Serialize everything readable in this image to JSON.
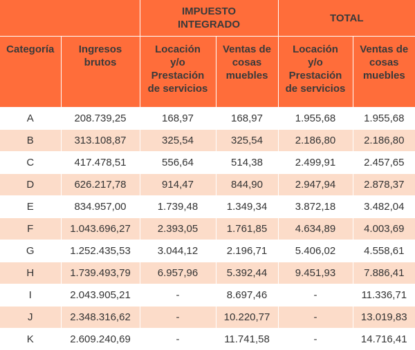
{
  "header": {
    "impuesto_integrado": "IMPUESTO\nINTEGRADO",
    "total": "TOTAL",
    "columns": [
      "Categoría",
      "Ingresos\nbrutos",
      "Locación\ny/o\nPrestación\nde servicios",
      "Ventas de\ncosas\nmuebles",
      "Locación\ny/o\nPrestación\nde servicios",
      "Ventas de\ncosas\nmuebles"
    ]
  },
  "rows": [
    [
      "A",
      "208.739,25",
      "168,97",
      "168,97",
      "1.955,68",
      "1.955,68"
    ],
    [
      "B",
      "313.108,87",
      "325,54",
      "325,54",
      "2.186,80",
      "2.186,80"
    ],
    [
      "C",
      "417.478,51",
      "556,64",
      "514,38",
      "2.499,91",
      "2.457,65"
    ],
    [
      "D",
      "626.217,78",
      "914,47",
      "844,90",
      "2.947,94",
      "2.878,37"
    ],
    [
      "E",
      "834.957,00",
      "1.739,48",
      "1.349,34",
      "3.872,18",
      "3.482,04"
    ],
    [
      "F",
      "1.043.696,27",
      "2.393,05",
      "1.761,85",
      "4.634,89",
      "4.003,69"
    ],
    [
      "G",
      "1.252.435,53",
      "3.044,12",
      "2.196,71",
      "5.406,02",
      "4.558,61"
    ],
    [
      "H",
      "1.739.493,79",
      "6.957,96",
      "5.392,44",
      "9.451,93",
      "7.886,41"
    ],
    [
      "I",
      "2.043.905,21",
      "-",
      "8.697,46",
      "-",
      "11.336,71"
    ],
    [
      "J",
      "2.348.316,62",
      "-",
      "10.220,77",
      "-",
      "13.019,83"
    ],
    [
      "K",
      "2.609.240,69",
      "-",
      "11.741,58",
      "-",
      "14.716,41"
    ]
  ]
}
